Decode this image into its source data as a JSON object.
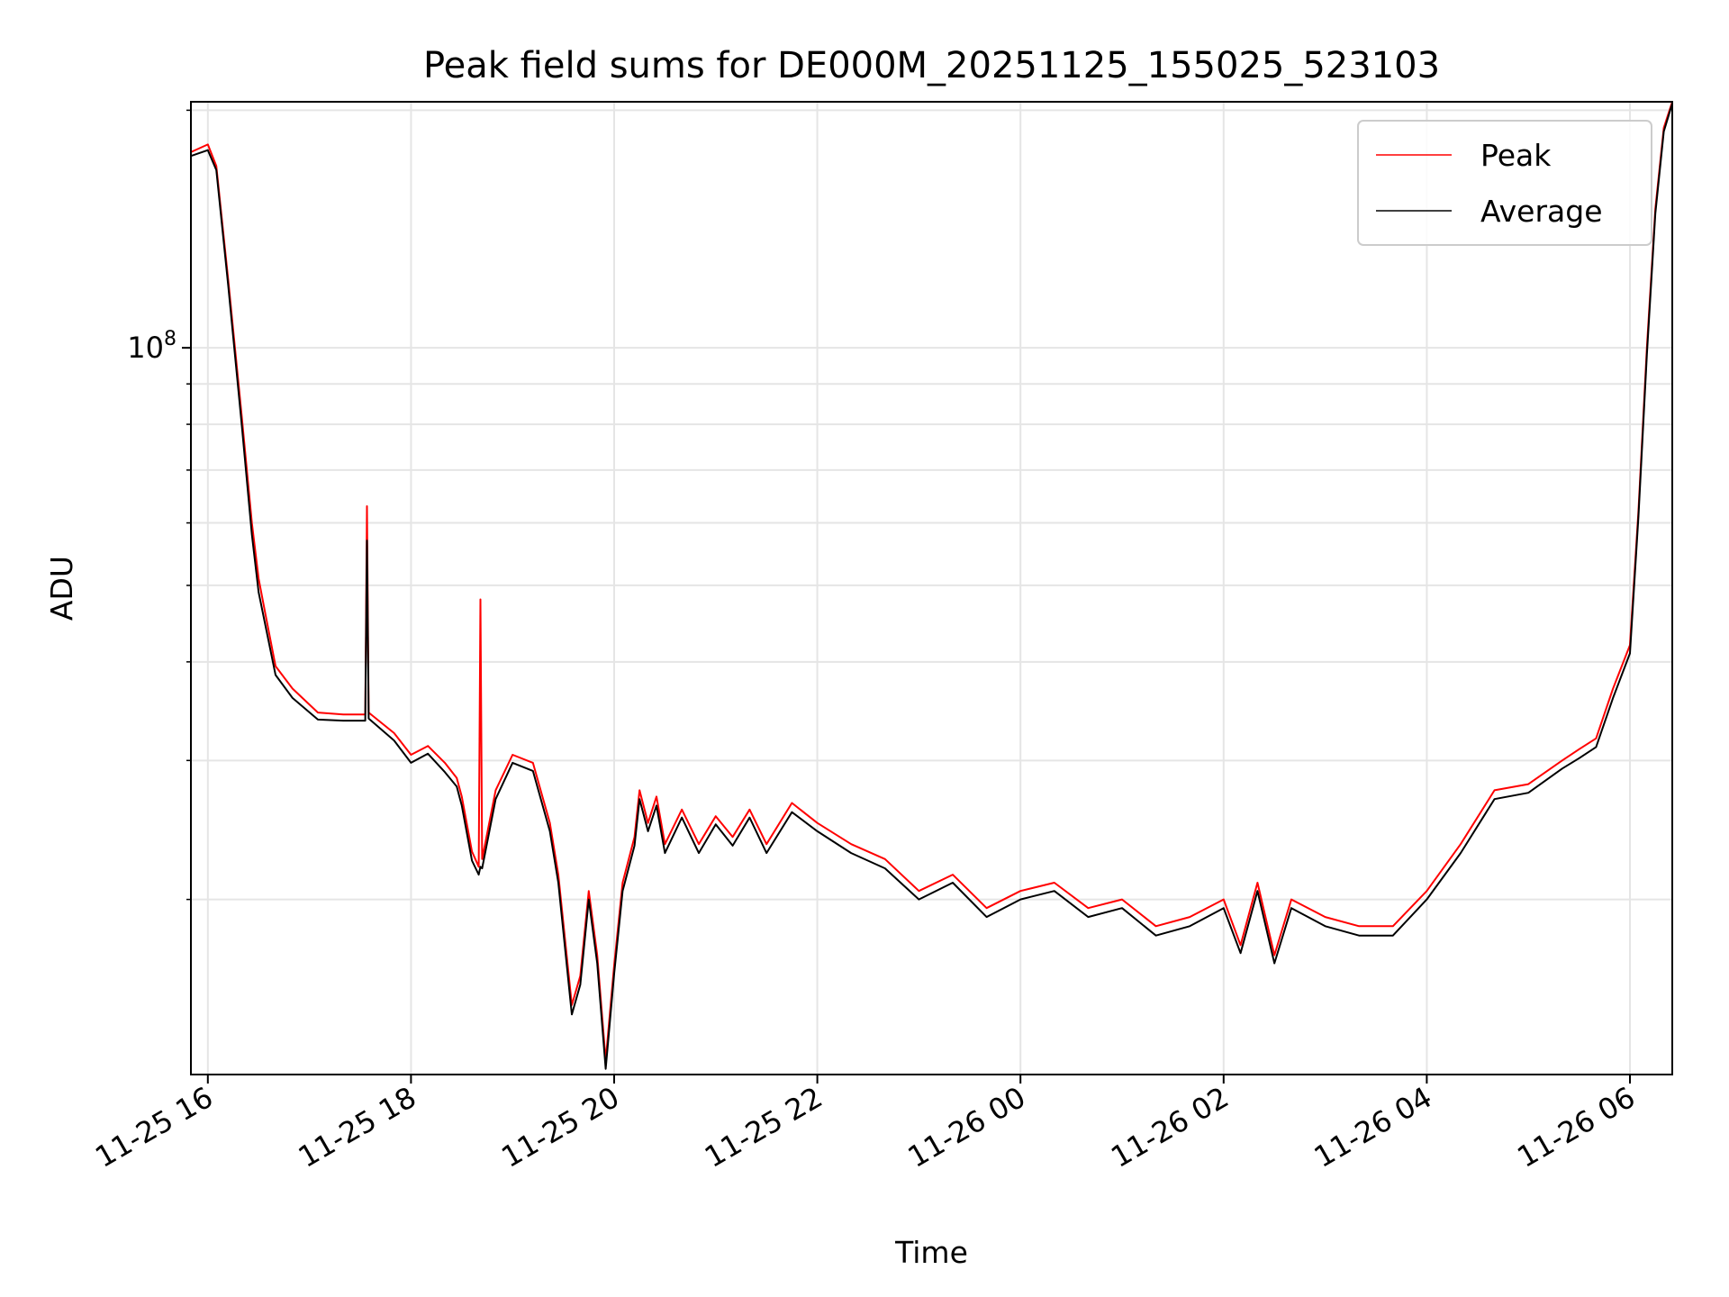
{
  "chart_data": {
    "type": "line",
    "title": "Peak field sums for DE000M_20251125_155025_523103",
    "xlabel": "Time",
    "ylabel": "ADU",
    "y_scale": "log",
    "y_tick_label": {
      "base": "10",
      "exponent": "8"
    },
    "xlim": [
      "2025-11-25 15:50",
      "2025-11-26 06:25"
    ],
    "ylim": [
      12000000,
      205000000
    ],
    "x_ticks": [
      {
        "date": "2025-11-25 16:00",
        "label": "11-25 16"
      },
      {
        "date": "2025-11-25 18:00",
        "label": "11-25 18"
      },
      {
        "date": "2025-11-25 20:00",
        "label": "11-25 20"
      },
      {
        "date": "2025-11-25 22:00",
        "label": "11-25 22"
      },
      {
        "date": "2025-11-26 00:00",
        "label": "11-26 00"
      },
      {
        "date": "2025-11-26 02:00",
        "label": "11-26 02"
      },
      {
        "date": "2025-11-26 04:00",
        "label": "11-26 04"
      },
      {
        "date": "2025-11-26 06:00",
        "label": "11-26 06"
      }
    ],
    "grid": true,
    "legend_position": "top-right",
    "series": [
      {
        "name": "Peak",
        "color": "#ff0000",
        "points": [
          [
            "2025-11-25 15:50",
            177000000
          ],
          [
            "2025-11-25 16:00",
            181000000
          ],
          [
            "2025-11-25 16:05",
            170000000
          ],
          [
            "2025-11-25 16:12",
            122000000
          ],
          [
            "2025-11-25 16:20",
            82000000
          ],
          [
            "2025-11-25 16:26",
            60000000
          ],
          [
            "2025-11-25 16:30",
            51000000
          ],
          [
            "2025-11-25 16:34",
            46000000
          ],
          [
            "2025-11-25 16:40",
            39500000
          ],
          [
            "2025-11-25 16:50",
            37000000
          ],
          [
            "2025-11-25 17:05",
            34500000
          ],
          [
            "2025-11-25 17:20",
            34300000
          ],
          [
            "2025-11-25 17:33",
            34300000
          ],
          [
            "2025-11-25 17:34",
            63000000
          ],
          [
            "2025-11-25 17:35",
            34500000
          ],
          [
            "2025-11-25 17:50",
            32500000
          ],
          [
            "2025-11-25 18:00",
            30500000
          ],
          [
            "2025-11-25 18:10",
            31300000
          ],
          [
            "2025-11-25 18:20",
            29800000
          ],
          [
            "2025-11-25 18:27",
            28500000
          ],
          [
            "2025-11-25 18:30",
            27000000
          ],
          [
            "2025-11-25 18:36",
            23000000
          ],
          [
            "2025-11-25 18:40",
            22000000
          ],
          [
            "2025-11-25 18:41",
            48000000
          ],
          [
            "2025-11-25 18:42",
            22500000
          ],
          [
            "2025-11-25 18:50",
            27500000
          ],
          [
            "2025-11-25 19:00",
            30500000
          ],
          [
            "2025-11-25 19:12",
            29800000
          ],
          [
            "2025-11-25 19:22",
            25000000
          ],
          [
            "2025-11-25 19:27",
            21500000
          ],
          [
            "2025-11-25 19:35",
            14700000
          ],
          [
            "2025-11-25 19:40",
            16000000
          ],
          [
            "2025-11-25 19:45",
            20500000
          ],
          [
            "2025-11-25 19:50",
            17000000
          ],
          [
            "2025-11-25 19:55",
            12500000
          ],
          [
            "2025-11-25 20:00",
            16500000
          ],
          [
            "2025-11-25 20:05",
            21000000
          ],
          [
            "2025-11-25 20:12",
            24000000
          ],
          [
            "2025-11-25 20:15",
            27500000
          ],
          [
            "2025-11-25 20:20",
            25000000
          ],
          [
            "2025-11-25 20:25",
            27000000
          ],
          [
            "2025-11-25 20:30",
            23500000
          ],
          [
            "2025-11-25 20:40",
            26000000
          ],
          [
            "2025-11-25 20:50",
            23500000
          ],
          [
            "2025-11-25 21:00",
            25500000
          ],
          [
            "2025-11-25 21:10",
            24000000
          ],
          [
            "2025-11-25 21:20",
            26000000
          ],
          [
            "2025-11-25 21:30",
            23500000
          ],
          [
            "2025-11-25 21:45",
            26500000
          ],
          [
            "2025-11-25 22:00",
            25000000
          ],
          [
            "2025-11-25 22:20",
            23500000
          ],
          [
            "2025-11-25 22:40",
            22500000
          ],
          [
            "2025-11-25 23:00",
            20500000
          ],
          [
            "2025-11-25 23:20",
            21500000
          ],
          [
            "2025-11-25 23:40",
            19500000
          ],
          [
            "2025-11-26 00:00",
            20500000
          ],
          [
            "2025-11-26 00:20",
            21000000
          ],
          [
            "2025-11-26 00:40",
            19500000
          ],
          [
            "2025-11-26 01:00",
            20000000
          ],
          [
            "2025-11-26 01:20",
            18500000
          ],
          [
            "2025-11-26 01:40",
            19000000
          ],
          [
            "2025-11-26 02:00",
            20000000
          ],
          [
            "2025-11-26 02:10",
            17500000
          ],
          [
            "2025-11-26 02:20",
            21000000
          ],
          [
            "2025-11-26 02:30",
            17000000
          ],
          [
            "2025-11-26 02:40",
            20000000
          ],
          [
            "2025-11-26 03:00",
            19000000
          ],
          [
            "2025-11-26 03:20",
            18500000
          ],
          [
            "2025-11-26 03:40",
            18500000
          ],
          [
            "2025-11-26 04:00",
            20500000
          ],
          [
            "2025-11-26 04:20",
            23500000
          ],
          [
            "2025-11-26 04:40",
            27500000
          ],
          [
            "2025-11-26 05:00",
            28000000
          ],
          [
            "2025-11-26 05:20",
            30000000
          ],
          [
            "2025-11-26 05:30",
            31000000
          ],
          [
            "2025-11-26 05:40",
            32000000
          ],
          [
            "2025-11-26 05:50",
            37000000
          ],
          [
            "2025-11-26 06:00",
            42000000
          ],
          [
            "2025-11-26 06:05",
            62000000
          ],
          [
            "2025-11-26 06:10",
            100000000
          ],
          [
            "2025-11-26 06:15",
            150000000
          ],
          [
            "2025-11-26 06:20",
            190000000
          ],
          [
            "2025-11-26 06:25",
            205000000
          ]
        ]
      },
      {
        "name": "Average",
        "color": "#000000",
        "points": [
          [
            "2025-11-25 15:50",
            175000000
          ],
          [
            "2025-11-25 16:00",
            178000000
          ],
          [
            "2025-11-25 16:05",
            168000000
          ],
          [
            "2025-11-25 16:12",
            120000000
          ],
          [
            "2025-11-25 16:20",
            80000000
          ],
          [
            "2025-11-25 16:26",
            58000000
          ],
          [
            "2025-11-25 16:30",
            49000000
          ],
          [
            "2025-11-25 16:34",
            44500000
          ],
          [
            "2025-11-25 16:40",
            38500000
          ],
          [
            "2025-11-25 16:50",
            36000000
          ],
          [
            "2025-11-25 17:05",
            33800000
          ],
          [
            "2025-11-25 17:20",
            33700000
          ],
          [
            "2025-11-25 17:33",
            33700000
          ],
          [
            "2025-11-25 17:34",
            57000000
          ],
          [
            "2025-11-25 17:35",
            33900000
          ],
          [
            "2025-11-25 17:50",
            31800000
          ],
          [
            "2025-11-25 18:00",
            29800000
          ],
          [
            "2025-11-25 18:10",
            30600000
          ],
          [
            "2025-11-25 18:20",
            29000000
          ],
          [
            "2025-11-25 18:27",
            27800000
          ],
          [
            "2025-11-25 18:30",
            26300000
          ],
          [
            "2025-11-25 18:36",
            22400000
          ],
          [
            "2025-11-25 18:40",
            21500000
          ],
          [
            "2025-11-25 18:41",
            22000000
          ],
          [
            "2025-11-25 18:42",
            21900000
          ],
          [
            "2025-11-25 18:50",
            26800000
          ],
          [
            "2025-11-25 19:00",
            29800000
          ],
          [
            "2025-11-25 19:12",
            29100000
          ],
          [
            "2025-11-25 19:22",
            24400000
          ],
          [
            "2025-11-25 19:27",
            21000000
          ],
          [
            "2025-11-25 19:35",
            14300000
          ],
          [
            "2025-11-25 19:40",
            15600000
          ],
          [
            "2025-11-25 19:45",
            20000000
          ],
          [
            "2025-11-25 19:50",
            16600000
          ],
          [
            "2025-11-25 19:55",
            12200000
          ],
          [
            "2025-11-25 20:00",
            16100000
          ],
          [
            "2025-11-25 20:05",
            20500000
          ],
          [
            "2025-11-25 20:12",
            23400000
          ],
          [
            "2025-11-25 20:15",
            26800000
          ],
          [
            "2025-11-25 20:20",
            24400000
          ],
          [
            "2025-11-25 20:25",
            26300000
          ],
          [
            "2025-11-25 20:30",
            22900000
          ],
          [
            "2025-11-25 20:40",
            25400000
          ],
          [
            "2025-11-25 20:50",
            22900000
          ],
          [
            "2025-11-25 21:00",
            24900000
          ],
          [
            "2025-11-25 21:10",
            23400000
          ],
          [
            "2025-11-25 21:20",
            25400000
          ],
          [
            "2025-11-25 21:30",
            22900000
          ],
          [
            "2025-11-25 21:45",
            25800000
          ],
          [
            "2025-11-25 22:00",
            24400000
          ],
          [
            "2025-11-25 22:20",
            22900000
          ],
          [
            "2025-11-25 22:40",
            21900000
          ],
          [
            "2025-11-25 23:00",
            20000000
          ],
          [
            "2025-11-25 23:20",
            21000000
          ],
          [
            "2025-11-25 23:40",
            19000000
          ],
          [
            "2025-11-26 00:00",
            20000000
          ],
          [
            "2025-11-26 00:20",
            20500000
          ],
          [
            "2025-11-26 00:40",
            19000000
          ],
          [
            "2025-11-26 01:00",
            19500000
          ],
          [
            "2025-11-26 01:20",
            18000000
          ],
          [
            "2025-11-26 01:40",
            18500000
          ],
          [
            "2025-11-26 02:00",
            19500000
          ],
          [
            "2025-11-26 02:10",
            17100000
          ],
          [
            "2025-11-26 02:20",
            20500000
          ],
          [
            "2025-11-26 02:30",
            16600000
          ],
          [
            "2025-11-26 02:40",
            19500000
          ],
          [
            "2025-11-26 03:00",
            18500000
          ],
          [
            "2025-11-26 03:20",
            18000000
          ],
          [
            "2025-11-26 03:40",
            18000000
          ],
          [
            "2025-11-26 04:00",
            20000000
          ],
          [
            "2025-11-26 04:20",
            22900000
          ],
          [
            "2025-11-26 04:40",
            26800000
          ],
          [
            "2025-11-26 05:00",
            27300000
          ],
          [
            "2025-11-26 05:20",
            29300000
          ],
          [
            "2025-11-26 05:30",
            30200000
          ],
          [
            "2025-11-26 05:40",
            31200000
          ],
          [
            "2025-11-26 05:50",
            36000000
          ],
          [
            "2025-11-26 06:00",
            41000000
          ],
          [
            "2025-11-26 06:05",
            61000000
          ],
          [
            "2025-11-26 06:10",
            98000000
          ],
          [
            "2025-11-26 06:15",
            148000000
          ],
          [
            "2025-11-26 06:20",
            188000000
          ],
          [
            "2025-11-26 06:25",
            204000000
          ]
        ]
      }
    ]
  }
}
